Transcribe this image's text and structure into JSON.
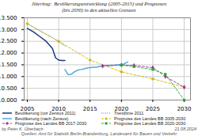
{
  "chart_data": {
    "type": "line",
    "title": "Jüterbog:  Bevölkerungsentwicklung (2005-2015) und Prognosen\n(bis 2030) in den aktuellen Grenzen",
    "xlim": [
      2004.5,
      2031
    ],
    "xticks": [
      2005,
      2010,
      2015,
      2020,
      2025,
      2030
    ],
    "ylim": [
      10000,
      13500
    ],
    "yticks": [
      {
        "value": 10000,
        "label": "10.000"
      },
      {
        "value": 10500,
        "label": "10.500"
      },
      {
        "value": 11000,
        "label": "11.000"
      },
      {
        "value": 11500,
        "label": "11.500"
      },
      {
        "value": 12000,
        "label": "12.000"
      },
      {
        "value": 12500,
        "label": "12.500"
      },
      {
        "value": 13000,
        "label": "13.000"
      },
      {
        "value": 13500,
        "label": "13.500"
      }
    ],
    "grid": true,
    "legend": "bottom",
    "series": [
      {
        "name": "Bevölkerung (vor Zensus 2011)",
        "color": "#1a3a7c",
        "line_style": "solid",
        "x": [
          2005,
          2006,
          2007,
          2008,
          2009,
          2009.5,
          2010,
          2010.5,
          2011
        ],
        "values": [
          13050,
          12900,
          12700,
          12500,
          12200,
          11800,
          11700,
          11680,
          11680
        ]
      },
      {
        "name": "Trendlinie 2011",
        "color": "#4477cc",
        "line_style": "dotted",
        "x": [
          2005,
          2006,
          2007,
          2008,
          2009,
          2010,
          2011
        ],
        "values": [
          13250,
          13100,
          12950,
          12800,
          12650,
          12500,
          12300
        ]
      },
      {
        "name": "Bevölkerung (nach Zensus)",
        "color": "#55aadd",
        "line_style": "solid",
        "x": [
          2011,
          2011.5,
          2012,
          2012.5,
          2013,
          2013.5,
          2014,
          2014.5,
          2015,
          2015.5,
          2016,
          2016.5,
          2017,
          2017.5,
          2018,
          2018.5,
          2019,
          2019.5,
          2020,
          2020.5,
          2021
        ],
        "values": [
          11300,
          11080,
          11100,
          11200,
          11270,
          11300,
          11320,
          11360,
          11380,
          11400,
          11400,
          11430,
          11450,
          11470,
          11470,
          11480,
          11490,
          11510,
          11490,
          11550,
          11620
        ]
      },
      {
        "name": "Prognose des Landes BB 2005-2030",
        "color": "#ccbb00",
        "line_style": "dashed",
        "marker": "circle",
        "x": [
          2005,
          2010,
          2015,
          2020,
          2025,
          2030
        ],
        "values": [
          13250,
          12500,
          11700,
          11200,
          10900,
          10550
        ]
      },
      {
        "name": "Prognose des Landes BB 2017-2030",
        "color": "#993399",
        "line_style": "dashed",
        "marker": "diamond",
        "x": [
          2017,
          2020,
          2022,
          2025,
          2027,
          2030
        ],
        "values": [
          11450,
          11490,
          11470,
          11380,
          11000,
          10550
        ]
      },
      {
        "name": "Prognose des Landes BB 2020-2030",
        "color": "#22aa33",
        "line_style": "dashed",
        "marker": "square",
        "x": [
          2020,
          2022,
          2025,
          2027,
          2030
        ],
        "values": [
          11490,
          11420,
          11300,
          11100,
          10000
        ]
      }
    ],
    "annotations": [
      "by Peter K. Überbach",
      "Quellen: Amt für Statistik Berlin-Brandenburg, Landesamt für Bauen und Verkehr",
      "21.08.2024"
    ]
  }
}
